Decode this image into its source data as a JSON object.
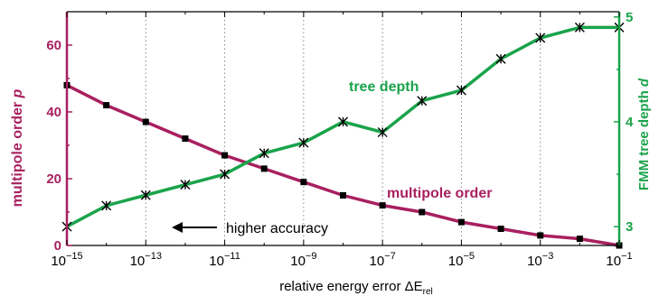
{
  "chart_data": {
    "type": "line",
    "xlabel_main": "relative energy error ΔE",
    "xlabel_sub": "rel",
    "x_scale": "log",
    "xlim": [
      1e-15,
      0.1
    ],
    "x_ticks": [
      {
        "base": "10",
        "exp": "−15",
        "value": -15
      },
      {
        "base": "10",
        "exp": "−13",
        "value": -13
      },
      {
        "base": "10",
        "exp": "−11",
        "value": -11
      },
      {
        "base": "10",
        "exp": "−9",
        "value": -9
      },
      {
        "base": "10",
        "exp": "−7",
        "value": -7
      },
      {
        "base": "10",
        "exp": "−5",
        "value": -5
      },
      {
        "base": "10",
        "exp": "−3",
        "value": -3
      },
      {
        "base": "10",
        "exp": "−1",
        "value": -1
      }
    ],
    "left_axis": {
      "label_main": "multipole order",
      "label_var": "p",
      "ylim": [
        0,
        70
      ],
      "ticks": [
        "0",
        "20",
        "40",
        "60"
      ],
      "tick_values": [
        0,
        20,
        40,
        60
      ],
      "color": "#a8205f"
    },
    "right_axis": {
      "label_main": "FMM tree depth",
      "label_var": "d",
      "ylim": [
        2.82,
        5.05
      ],
      "ticks": [
        "3",
        "4",
        "5"
      ],
      "tick_values": [
        3,
        4,
        5
      ],
      "color": "#1aa34a"
    },
    "grid": true,
    "grid_style": "dotted vertical at decades",
    "series": [
      {
        "name": "multipole order",
        "axis": "left",
        "color": "#a8205f",
        "marker": "square",
        "log10_x": [
          -15,
          -14,
          -13,
          -12,
          -11,
          -10,
          -9,
          -8,
          -7,
          -6,
          -5,
          -4,
          -3,
          -2,
          -1
        ],
        "y": [
          48,
          42,
          37,
          32,
          27,
          23,
          19,
          15,
          12,
          10,
          7,
          5,
          3,
          2,
          0
        ]
      },
      {
        "name": "tree depth",
        "axis": "right",
        "color": "#1aa34a",
        "marker": "star",
        "log10_x": [
          -15,
          -14,
          -13,
          -12,
          -11,
          -10,
          -9,
          -8,
          -7,
          -6,
          -5,
          -4,
          -3,
          -2,
          -1
        ],
        "y": [
          3.0,
          3.2,
          3.3,
          3.4,
          3.5,
          3.7,
          3.8,
          4.0,
          3.9,
          4.2,
          4.3,
          4.6,
          4.8,
          4.9,
          4.9
        ]
      }
    ],
    "annotation": {
      "text": "higher accuracy",
      "arrow": "left"
    }
  }
}
